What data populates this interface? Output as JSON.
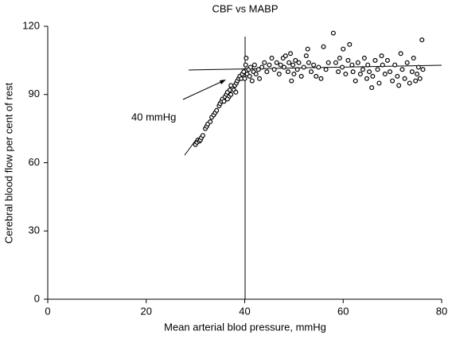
{
  "chart_data": {
    "type": "scatter",
    "title": "CBF vs MABP",
    "x_label": "Mean arterial blod pressure, mmHg",
    "y_label": "Cerebral blood flow per cent of rest",
    "annotation": "40 mmHg",
    "xlim": [
      0,
      80
    ],
    "xticks": [
      0,
      20,
      40,
      60,
      80
    ],
    "ylim": [
      0,
      120
    ],
    "yticks": [
      0,
      30,
      60,
      90,
      120
    ],
    "grid": false,
    "color": "#000000",
    "x": [
      30,
      30.3,
      30.5,
      30.8,
      31,
      31.2,
      31.5,
      32,
      32.3,
      32.5,
      33,
      33.3,
      33.7,
      34,
      34.3,
      34.8,
      35,
      35.3,
      35.5,
      35.8,
      36,
      36.3,
      36.5,
      36.8,
      37,
      37.2,
      37.5,
      37.8,
      38,
      38.3,
      38.5,
      38.8,
      39,
      39.3,
      39.5,
      39.8,
      36.5,
      37.2,
      38.2,
      40,
      40.2,
      40.3,
      40.5,
      40.8,
      41,
      41.2,
      41.5,
      41.8,
      42,
      42.3,
      42.8,
      43,
      43.5,
      44,
      44.5,
      45,
      45.5,
      46,
      46.5,
      47,
      47.3,
      47.8,
      48,
      48.3,
      48.8,
      49,
      49.3,
      49.5,
      49.8,
      50,
      50.3,
      50.7,
      51,
      51.5,
      52,
      52.5,
      52.8,
      53,
      53.5,
      54,
      54.5,
      55,
      55.5,
      56,
      56.5,
      57,
      58,
      58.5,
      59,
      59.3,
      59.8,
      60,
      60.5,
      61,
      61.3,
      61.8,
      62,
      62.5,
      63,
      63.5,
      64,
      64.3,
      64.8,
      65,
      65.3,
      65.8,
      66,
      66.5,
      67,
      67.3,
      67.8,
      68,
      68.5,
      69,
      69.5,
      70,
      70.5,
      71,
      71.3,
      71.7,
      72,
      72.5,
      73,
      73.5,
      74,
      74.3,
      74.7,
      75,
      75.3,
      75.6,
      76,
      76.2
    ],
    "values": [
      68,
      69,
      70,
      69.5,
      70,
      71,
      72,
      75,
      76,
      77,
      78,
      80,
      81,
      82,
      83,
      85,
      86,
      87,
      88,
      87,
      89,
      90,
      91,
      89,
      92,
      90,
      93,
      92,
      94,
      95,
      96,
      97,
      98,
      97,
      99,
      100,
      88,
      94,
      91,
      97,
      103,
      106,
      99,
      101,
      98,
      102,
      96,
      100,
      103,
      99,
      101,
      97,
      102,
      104,
      100,
      103,
      106,
      101,
      104,
      99,
      103,
      106,
      102,
      107,
      100,
      104,
      108,
      96,
      103,
      99,
      105,
      101,
      104,
      98,
      102,
      107,
      110,
      104,
      100,
      103,
      98,
      102,
      97,
      111,
      101,
      104,
      117,
      104,
      100,
      106,
      102,
      110,
      99,
      105,
      112,
      103,
      100,
      96,
      104,
      99,
      101,
      106,
      97,
      103,
      100,
      93,
      98,
      105,
      101,
      95,
      107,
      103,
      99,
      105,
      100,
      96,
      103,
      98,
      94,
      108,
      101,
      97,
      104,
      95,
      100,
      106,
      96,
      99,
      102,
      97,
      114,
      101
    ]
  }
}
